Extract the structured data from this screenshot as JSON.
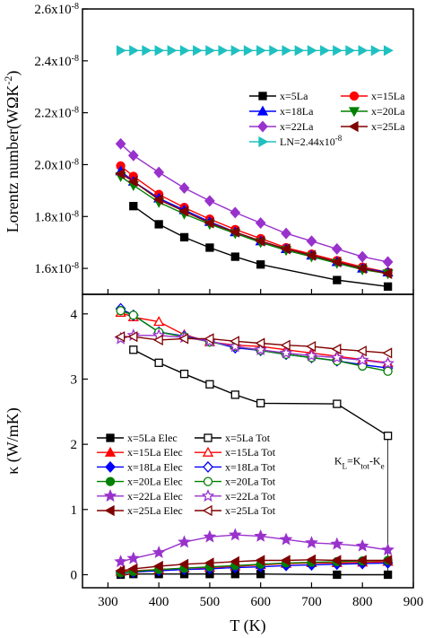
{
  "chart_data": [
    {
      "type": "line",
      "ylabel": "Lorentz number(WΩK⁻²)",
      "xlim": [
        250,
        900
      ],
      "ylim": [
        1.5e-08,
        2.6e-08
      ],
      "xticks": [
        300,
        400,
        500,
        600,
        700,
        800,
        900
      ],
      "yticks": [
        1.6e-08,
        1.8e-08,
        2e-08,
        2.2e-08,
        2.4e-08,
        2.6e-08
      ],
      "ytick_labels": [
        "1.6x10⁻⁸",
        "1.8x10⁻⁸",
        "2.0x10⁻⁸",
        "2.2x10⁻⁸",
        "2.4x10⁻⁸",
        "2.6x10⁻⁸"
      ],
      "legend_placement": "center-right",
      "grid": false,
      "series": [
        {
          "name": "x=5La",
          "color": "#000000",
          "marker": "square",
          "x": [
            350,
            400,
            450,
            500,
            550,
            600,
            750,
            850
          ],
          "y": [
            1.84e-08,
            1.77e-08,
            1.72e-08,
            1.68e-08,
            1.645e-08,
            1.615e-08,
            1.555e-08,
            1.53e-08
          ]
        },
        {
          "name": "x=15La",
          "color": "#ff0000",
          "marker": "circle",
          "x": [
            325,
            350,
            400,
            450,
            500,
            550,
            600,
            650,
            700,
            750,
            800,
            850
          ],
          "y": [
            1.995e-08,
            1.955e-08,
            1.885e-08,
            1.835e-08,
            1.79e-08,
            1.75e-08,
            1.715e-08,
            1.68e-08,
            1.655e-08,
            1.63e-08,
            1.605e-08,
            1.585e-08
          ]
        },
        {
          "name": "x=18La",
          "color": "#0000ff",
          "marker": "triangle-up",
          "x": [
            325,
            350,
            400,
            450,
            500,
            550,
            600,
            650,
            700,
            750,
            800,
            850
          ],
          "y": [
            1.975e-08,
            1.935e-08,
            1.87e-08,
            1.825e-08,
            1.78e-08,
            1.74e-08,
            1.705e-08,
            1.675e-08,
            1.65e-08,
            1.625e-08,
            1.6e-08,
            1.585e-08
          ]
        },
        {
          "name": "x=20La",
          "color": "#008000",
          "marker": "triangle-down",
          "x": [
            325,
            350,
            400,
            450,
            500,
            550,
            600,
            650,
            700,
            750,
            800,
            850
          ],
          "y": [
            1.955e-08,
            1.92e-08,
            1.855e-08,
            1.81e-08,
            1.77e-08,
            1.735e-08,
            1.7e-08,
            1.67e-08,
            1.645e-08,
            1.62e-08,
            1.595e-08,
            1.58e-08
          ]
        },
        {
          "name": "x=22La",
          "color": "#9932cc",
          "marker": "diamond",
          "x": [
            325,
            350,
            400,
            450,
            500,
            550,
            600,
            650,
            700,
            750,
            800,
            850
          ],
          "y": [
            2.08e-08,
            2.035e-08,
            1.97e-08,
            1.91e-08,
            1.86e-08,
            1.815e-08,
            1.775e-08,
            1.735e-08,
            1.705e-08,
            1.675e-08,
            1.645e-08,
            1.625e-08
          ]
        },
        {
          "name": "x=25La",
          "color": "#800000",
          "marker": "triangle-left",
          "x": [
            325,
            350,
            400,
            450,
            500,
            550,
            600,
            650,
            700,
            750,
            800,
            850
          ],
          "y": [
            1.965e-08,
            1.935e-08,
            1.865e-08,
            1.82e-08,
            1.775e-08,
            1.74e-08,
            1.705e-08,
            1.675e-08,
            1.65e-08,
            1.625e-08,
            1.6e-08,
            1.58e-08
          ]
        },
        {
          "name": "LN=2.44x10⁻⁸",
          "color": "#20c0c0",
          "marker": "triangle-right",
          "x": [
            325,
            350,
            375,
            400,
            425,
            450,
            475,
            500,
            525,
            550,
            575,
            600,
            625,
            650,
            675,
            700,
            725,
            750,
            775,
            800,
            825,
            850
          ],
          "y": [
            2.44e-08,
            2.44e-08,
            2.44e-08,
            2.44e-08,
            2.44e-08,
            2.44e-08,
            2.44e-08,
            2.44e-08,
            2.44e-08,
            2.44e-08,
            2.44e-08,
            2.44e-08,
            2.44e-08,
            2.44e-08,
            2.44e-08,
            2.44e-08,
            2.44e-08,
            2.44e-08,
            2.44e-08,
            2.44e-08,
            2.44e-08,
            2.44e-08
          ]
        }
      ]
    },
    {
      "type": "line",
      "xlabel": "T (K)",
      "ylabel": "κ (W/mK)",
      "xlim": [
        250,
        900
      ],
      "ylim": [
        -0.2,
        4.3
      ],
      "xticks": [
        300,
        400,
        500,
        600,
        700,
        800,
        900
      ],
      "yticks": [
        0,
        1,
        2,
        3,
        4
      ],
      "legend_placement": "lower-left",
      "grid": false,
      "annotation": {
        "text": "K_L=K_tot-K_e",
        "base": "K",
        "parts": [
          {
            "sub": "L"
          },
          {
            "t": "=K"
          },
          {
            "sub": "tot"
          },
          {
            "t": "-K"
          },
          {
            "sub": "e"
          }
        ],
        "x": 850,
        "y_from": 2.13,
        "y_to": 0.0
      },
      "series": [
        {
          "name": "x=5La Elec",
          "color": "#000000",
          "marker": "square",
          "filled": true,
          "x": [
            325,
            350,
            400,
            450,
            500,
            550,
            600,
            750,
            850
          ],
          "y": [
            0.0,
            0.01,
            0.01,
            0.01,
            0.01,
            0.01,
            0.01,
            0.0,
            0.0
          ]
        },
        {
          "name": "x=5La Tot",
          "color": "#000000",
          "marker": "square",
          "filled": false,
          "x": [
            350,
            400,
            450,
            500,
            550,
            600,
            750,
            850
          ],
          "y": [
            3.45,
            3.25,
            3.08,
            2.92,
            2.76,
            2.63,
            2.62,
            2.13
          ]
        },
        {
          "name": "x=15La Elec",
          "color": "#ff0000",
          "marker": "triangle-up",
          "filled": true,
          "x": [
            325,
            350,
            400,
            450,
            500,
            550,
            600,
            650,
            700,
            750,
            800,
            850
          ],
          "y": [
            0.05,
            0.06,
            0.08,
            0.1,
            0.11,
            0.13,
            0.15,
            0.17,
            0.18,
            0.18,
            0.19,
            0.2
          ]
        },
        {
          "name": "x=15La Tot",
          "color": "#ff0000",
          "marker": "triangle-up",
          "filled": false,
          "x": [
            325,
            350,
            400,
            450,
            500,
            550,
            600,
            650,
            700,
            750,
            800,
            850
          ],
          "y": [
            4.02,
            3.95,
            3.88,
            3.68,
            3.57,
            3.52,
            3.5,
            3.45,
            3.4,
            3.35,
            3.3,
            3.25
          ]
        },
        {
          "name": "x=18La Elec",
          "color": "#0000ff",
          "marker": "diamond",
          "filled": true,
          "x": [
            325,
            350,
            400,
            450,
            500,
            550,
            600,
            650,
            700,
            750,
            800,
            850
          ],
          "y": [
            0.03,
            0.04,
            0.06,
            0.08,
            0.09,
            0.11,
            0.12,
            0.14,
            0.15,
            0.16,
            0.17,
            0.18
          ]
        },
        {
          "name": "x=18La Tot",
          "color": "#0000ff",
          "marker": "diamond",
          "filled": false,
          "x": [
            325,
            350,
            400,
            450,
            500,
            550,
            600,
            650,
            700,
            750,
            800,
            850
          ],
          "y": [
            4.08,
            3.98,
            3.72,
            3.66,
            3.58,
            3.48,
            3.44,
            3.38,
            3.33,
            3.28,
            3.22,
            3.17
          ]
        },
        {
          "name": "x=20La Elec",
          "color": "#008000",
          "marker": "circle",
          "filled": true,
          "x": [
            325,
            350,
            400,
            450,
            500,
            550,
            600,
            650,
            700,
            750,
            800,
            850
          ],
          "y": [
            0.03,
            0.05,
            0.08,
            0.1,
            0.12,
            0.14,
            0.16,
            0.18,
            0.19,
            0.2,
            0.21,
            0.22
          ]
        },
        {
          "name": "x=20La Tot",
          "color": "#008000",
          "marker": "circle",
          "filled": false,
          "x": [
            325,
            350,
            400,
            450,
            500,
            550,
            600,
            650,
            700,
            750,
            800,
            850
          ],
          "y": [
            4.05,
            3.98,
            3.72,
            3.65,
            3.57,
            3.5,
            3.44,
            3.38,
            3.33,
            3.28,
            3.2,
            3.12
          ]
        },
        {
          "name": "x=22La Elec",
          "color": "#9932cc",
          "marker": "star",
          "filled": true,
          "x": [
            325,
            350,
            400,
            450,
            500,
            550,
            600,
            650,
            700,
            750,
            800,
            850
          ],
          "y": [
            0.2,
            0.25,
            0.34,
            0.5,
            0.58,
            0.61,
            0.59,
            0.54,
            0.49,
            0.47,
            0.44,
            0.38
          ]
        },
        {
          "name": "x=22La Tot",
          "color": "#9932cc",
          "marker": "star",
          "filled": false,
          "x": [
            325,
            350,
            400,
            450,
            500,
            550,
            600,
            650,
            700,
            750,
            800,
            850
          ],
          "y": [
            3.62,
            3.67,
            3.67,
            3.64,
            3.58,
            3.5,
            3.45,
            3.4,
            3.36,
            3.33,
            3.29,
            3.24
          ]
        },
        {
          "name": "x=25La Elec",
          "color": "#800000",
          "marker": "triangle-left",
          "filled": true,
          "x": [
            325,
            350,
            400,
            450,
            500,
            550,
            600,
            650,
            700,
            750,
            800,
            850
          ],
          "y": [
            0.06,
            0.09,
            0.13,
            0.16,
            0.18,
            0.2,
            0.22,
            0.22,
            0.23,
            0.22,
            0.22,
            0.22
          ]
        },
        {
          "name": "x=25La Tot",
          "color": "#800000",
          "marker": "triangle-left",
          "filled": false,
          "x": [
            325,
            350,
            400,
            450,
            500,
            550,
            600,
            650,
            700,
            750,
            800,
            850
          ],
          "y": [
            3.65,
            3.65,
            3.6,
            3.62,
            3.62,
            3.58,
            3.55,
            3.52,
            3.5,
            3.46,
            3.43,
            3.4
          ]
        }
      ]
    }
  ]
}
